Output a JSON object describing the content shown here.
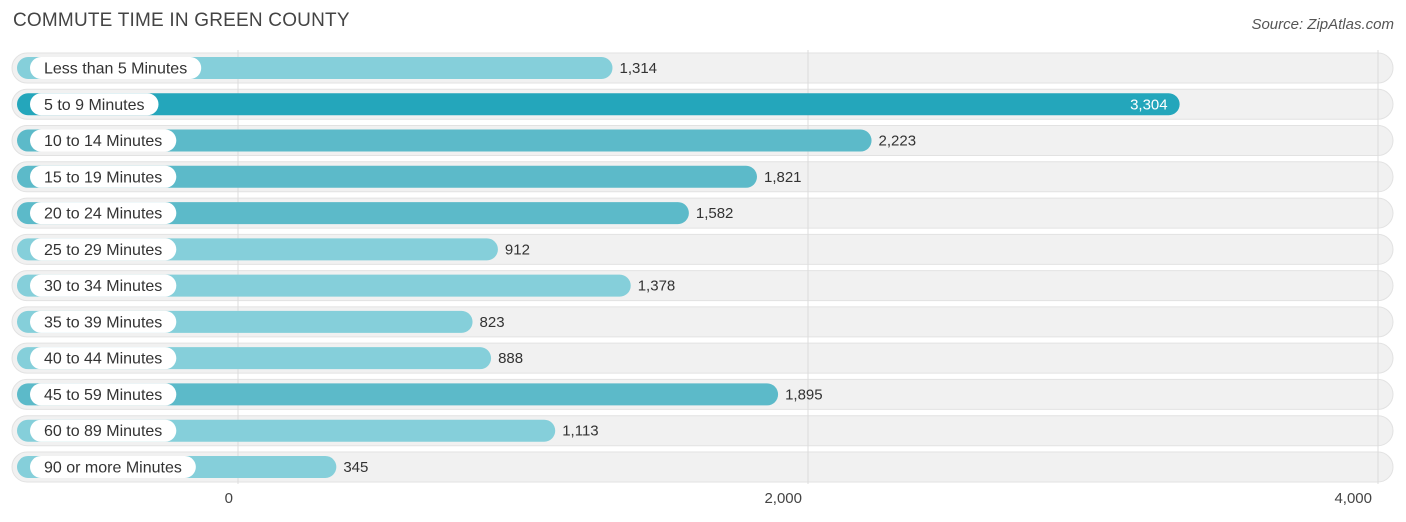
{
  "header": {
    "title": "COMMUTE TIME IN GREEN COUNTY",
    "source": "Source: ZipAtlas.com"
  },
  "chart_data": {
    "type": "bar",
    "orientation": "horizontal",
    "title": "COMMUTE TIME IN GREEN COUNTY",
    "categories": [
      "Less than 5 Minutes",
      "5 to 9 Minutes",
      "10 to 14 Minutes",
      "15 to 19 Minutes",
      "20 to 24 Minutes",
      "25 to 29 Minutes",
      "30 to 34 Minutes",
      "35 to 39 Minutes",
      "40 to 44 Minutes",
      "45 to 59 Minutes",
      "60 to 89 Minutes",
      "90 or more Minutes"
    ],
    "values": [
      1314,
      3304,
      2223,
      1821,
      1582,
      912,
      1378,
      823,
      888,
      1895,
      1113,
      345
    ],
    "value_labels": [
      "1,314",
      "3,304",
      "2,223",
      "1,821",
      "1,582",
      "912",
      "1,378",
      "823",
      "888",
      "1,895",
      "1,113",
      "345"
    ],
    "xlim": [
      0,
      4000
    ],
    "x_ticks": [
      0,
      2000,
      4000
    ],
    "x_tick_labels": [
      "0",
      "2,000",
      "4,000"
    ],
    "grid": true,
    "colors": {
      "highlight": "#24a6bb",
      "bar": "#5cbac9",
      "bar_light": "#85cfda",
      "track": "#f1f1f1"
    },
    "highlight_index": 1
  }
}
